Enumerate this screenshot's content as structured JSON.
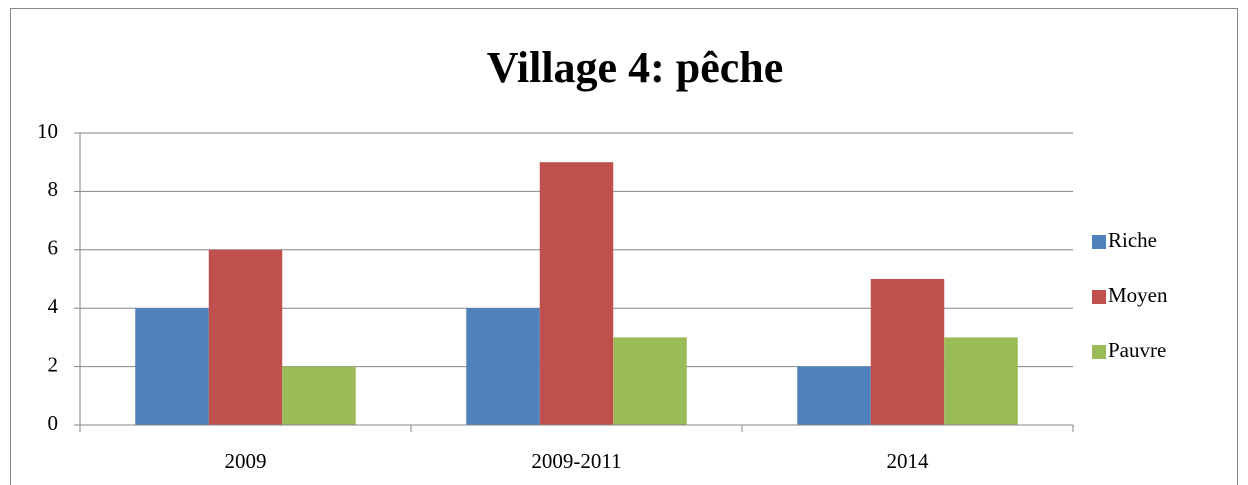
{
  "chart_data": {
    "type": "bar",
    "title": "Village 4: pêche",
    "categories": [
      "2009",
      "2009-2011",
      "2014"
    ],
    "series": [
      {
        "name": "Riche",
        "color": "#4f81bd",
        "values": [
          4,
          4,
          2
        ]
      },
      {
        "name": "Moyen",
        "color": "#c0504d",
        "values": [
          6,
          9,
          5
        ]
      },
      {
        "name": "Pauvre",
        "color": "#9bbb59",
        "values": [
          2,
          3,
          3
        ]
      }
    ],
    "ylim": [
      0,
      10
    ],
    "yticks": [
      0,
      2,
      4,
      6,
      8,
      10
    ],
    "grid": true,
    "legend": "right"
  }
}
